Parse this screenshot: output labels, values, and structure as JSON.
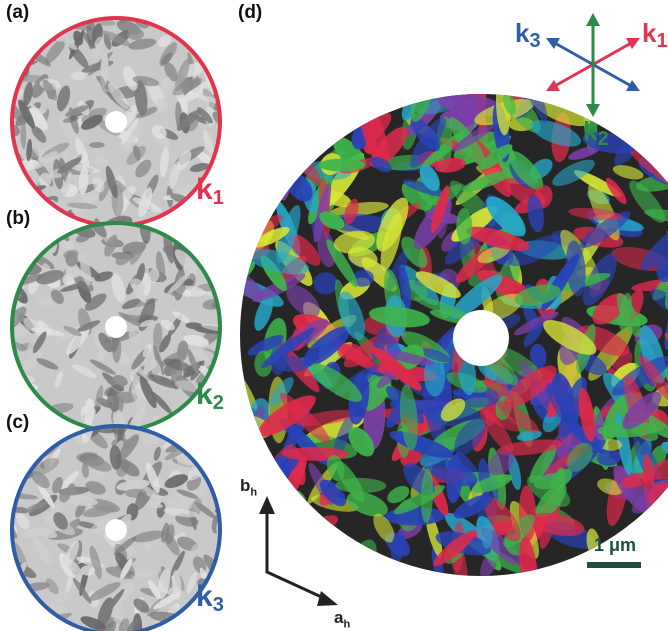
{
  "panels": {
    "a": {
      "label": "(a)"
    },
    "b": {
      "label": "(b)"
    },
    "c": {
      "label": "(c)"
    },
    "d": {
      "label": "(d)"
    }
  },
  "wavevectors": {
    "k1": {
      "letter": "k",
      "index": "1",
      "color": "#e2344f"
    },
    "k2": {
      "letter": "k",
      "index": "2",
      "color": "#2e8a4a"
    },
    "k3": {
      "letter": "k",
      "index": "3",
      "color": "#2f5ea6"
    }
  },
  "axes": {
    "b": {
      "letter": "b",
      "index": "h"
    },
    "a": {
      "letter": "a",
      "index": "h"
    }
  },
  "scale_bar": {
    "text": "1 μm",
    "color": "#1f4e43"
  },
  "colors": {
    "domain_red": "#e02a4b",
    "domain_green": "#3fb54b",
    "domain_blue": "#2943b8",
    "domain_cyan": "#27a6c9",
    "domain_yellow": "#d7e637",
    "domain_purple": "#7b3fa8",
    "background_dark": "#2a2a2a",
    "gray_light": "#cfcfcf",
    "gray_dark": "#6a6a6a"
  }
}
